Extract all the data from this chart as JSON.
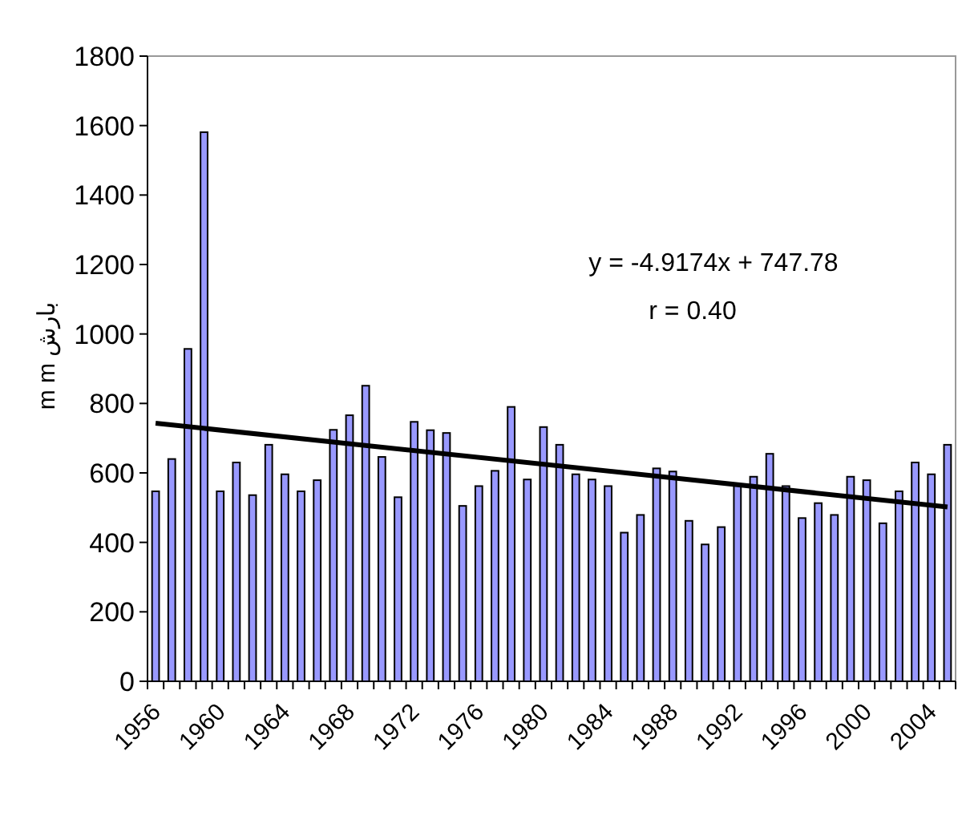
{
  "chart_data": {
    "type": "bar",
    "ylabel": "m m بارش",
    "categories": [
      "1956",
      null,
      null,
      null,
      "1960",
      null,
      null,
      null,
      "1964",
      null,
      null,
      null,
      "1968",
      null,
      null,
      null,
      "1972",
      null,
      null,
      null,
      "1976",
      null,
      null,
      null,
      "1980",
      null,
      null,
      null,
      "1984",
      null,
      null,
      null,
      "1988",
      null,
      null,
      null,
      "1992",
      null,
      null,
      null,
      "1996",
      null,
      null,
      null,
      "2000",
      null,
      null,
      null,
      "2004",
      null
    ],
    "ylim": [
      0,
      1800
    ],
    "yticks": [
      0,
      200,
      400,
      600,
      800,
      1000,
      1200,
      1400,
      1600,
      1800
    ],
    "series": [
      {
        "color": "#9999ff",
        "values": [
          547,
          640,
          957,
          1581,
          547,
          630,
          536,
          681,
          596,
          547,
          579,
          724,
          766,
          851,
          646,
          530,
          747,
          723,
          715,
          505,
          562,
          606,
          790,
          581,
          732,
          681,
          596,
          581,
          562,
          428,
          479,
          613,
          604,
          462,
          394,
          444,
          567,
          589,
          655,
          562,
          470,
          513,
          479,
          589,
          579,
          455,
          547,
          630,
          596,
          681
        ]
      },
      {
        "type": "line",
        "color": "#000000",
        "values": [
          743,
          null,
          null,
          null,
          null,
          null,
          null,
          null,
          null,
          null,
          null,
          null,
          null,
          null,
          null,
          null,
          null,
          null,
          null,
          null,
          null,
          null,
          null,
          null,
          null,
          null,
          null,
          null,
          null,
          null,
          null,
          null,
          null,
          null,
          null,
          null,
          null,
          null,
          null,
          null,
          null,
          null,
          null,
          null,
          null,
          null,
          null,
          null,
          null,
          502
        ]
      }
    ],
    "annotations": [
      "y = -4.9174x + 747.78",
      "r = 0.40"
    ]
  }
}
